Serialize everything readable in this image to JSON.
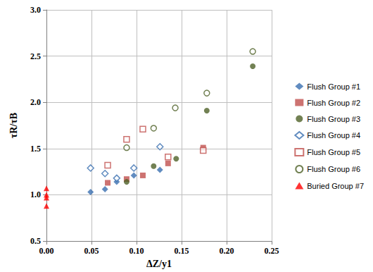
{
  "chart_data": {
    "type": "scatter",
    "x_label": "ΔZ/y1",
    "y_label": "τR/τB",
    "xlim": [
      0,
      0.25
    ],
    "xticks": [
      {
        "value": 0,
        "label": "0.00"
      },
      {
        "value": 0.05,
        "label": "0.05"
      },
      {
        "value": 0.1,
        "label": "0.10"
      },
      {
        "value": 0.15,
        "label": "0.15"
      },
      {
        "value": 0.2,
        "label": "0.20"
      },
      {
        "value": 0.25,
        "label": "0.25"
      }
    ],
    "ylim": [
      0.5,
      3.0
    ],
    "yticks": [
      0.5,
      {
        "value": 1,
        "label": "1.0"
      },
      1.5,
      {
        "value": 2,
        "label": "2.0"
      },
      2.5,
      {
        "value": 3,
        "label": "3.0"
      }
    ],
    "grid": true,
    "legend": "right",
    "series": [
      {
        "name": "Flush Group #1",
        "color": "#3a6fb0",
        "marker": "diamond",
        "x": [
          0.049,
          0.065,
          0.078,
          0.097,
          0.126
        ],
        "values": [
          1.03,
          1.06,
          1.14,
          1.21,
          1.27
        ]
      },
      {
        "name": "Flush Group #2",
        "color": "#c0504d",
        "marker": "square",
        "x": [
          0.068,
          0.089,
          0.107,
          0.135,
          0.174
        ],
        "values": [
          1.13,
          1.17,
          1.21,
          1.34,
          1.51
        ]
      },
      {
        "name": "Flush Group #3",
        "color": "#4f6228",
        "marker": "circle",
        "x": [
          0.089,
          0.119,
          0.144,
          0.178,
          0.229
        ],
        "values": [
          1.14,
          1.31,
          1.39,
          1.91,
          2.39
        ]
      },
      {
        "name": "Flush Group #4",
        "color": "#3a6fb0",
        "marker": "open_diamond",
        "x": [
          0.049,
          0.065,
          0.078,
          0.097,
          0.126
        ],
        "values": [
          1.29,
          1.23,
          1.18,
          1.29,
          1.52
        ]
      },
      {
        "name": "Flush Group #5",
        "color": "#c0504d",
        "marker": "open_square",
        "x": [
          0.068,
          0.089,
          0.107,
          0.135,
          0.174
        ],
        "values": [
          1.32,
          1.6,
          1.71,
          1.41,
          1.48
        ]
      },
      {
        "name": "Flush Group #6",
        "color": "#4f6228",
        "marker": "open_circle",
        "x": [
          0.089,
          0.119,
          0.143,
          0.178,
          0.229
        ],
        "values": [
          1.51,
          1.72,
          1.94,
          2.1,
          2.55
        ]
      },
      {
        "name": "Buried Group #7",
        "color": "#ff0000",
        "marker": "triangle",
        "x": [
          0,
          0,
          0,
          0
        ],
        "values": [
          1.07,
          1.0,
          0.97,
          0.88
        ]
      }
    ]
  }
}
